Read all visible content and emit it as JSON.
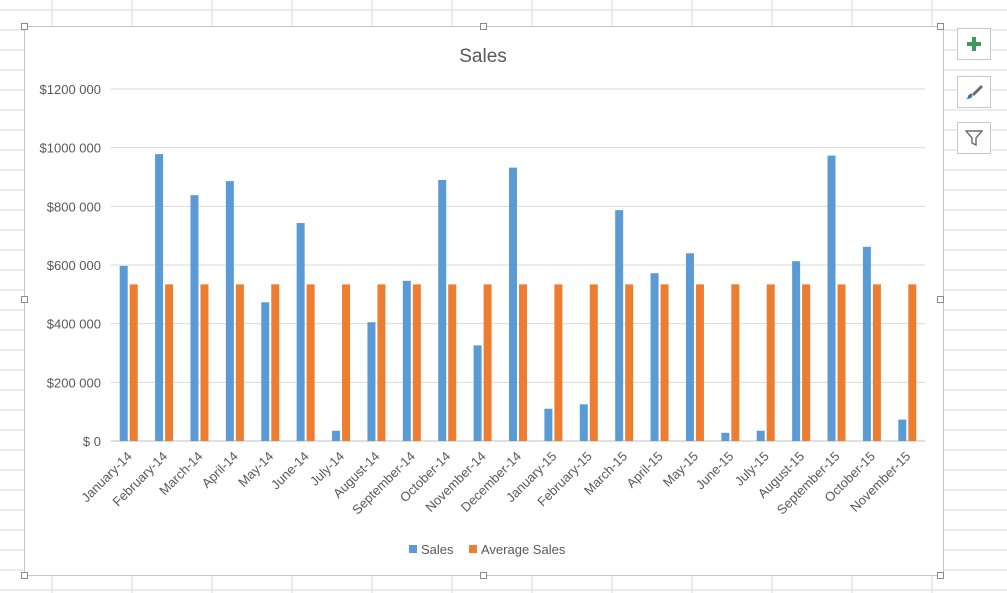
{
  "chart_data": {
    "type": "bar",
    "title": "Sales",
    "xlabel": "",
    "ylabel": "",
    "ylim": [
      0,
      1200000
    ],
    "y_ticks": [
      0,
      200000,
      400000,
      600000,
      800000,
      1000000,
      1200000
    ],
    "y_tick_labels": [
      "$ 0",
      "$200 000",
      "$400 000",
      "$600 000",
      "$800 000",
      "$1000 000",
      "$1200 000"
    ],
    "categories": [
      "January-14",
      "February-14",
      "March-14",
      "April-14",
      "May-14",
      "June-14",
      "July-14",
      "August-14",
      "September-14",
      "October-14",
      "November-14",
      "December-14",
      "January-15",
      "February-15",
      "March-15",
      "April-15",
      "May-15",
      "June-15",
      "July-15",
      "August-15",
      "September-15",
      "October-15",
      "November-15"
    ],
    "series": [
      {
        "name": "Sales",
        "color": "#5B9BD5",
        "values": [
          597000,
          978000,
          838000,
          886000,
          473000,
          743000,
          35000,
          405000,
          546000,
          890000,
          326000,
          932000,
          110000,
          125000,
          787000,
          572000,
          640000,
          28000,
          35000,
          613000,
          973000,
          662000,
          73000
        ]
      },
      {
        "name": "Average Sales",
        "color": "#ED7D31",
        "values": [
          534000,
          534000,
          534000,
          534000,
          534000,
          534000,
          534000,
          534000,
          534000,
          534000,
          534000,
          534000,
          534000,
          534000,
          534000,
          534000,
          534000,
          534000,
          534000,
          534000,
          534000,
          534000,
          534000
        ]
      }
    ],
    "grid": true,
    "legend_position": "bottom"
  },
  "side_buttons": [
    {
      "name": "chart-elements-button",
      "icon": "plus-icon"
    },
    {
      "name": "chart-styles-button",
      "icon": "paintbrush-icon"
    },
    {
      "name": "chart-filters-button",
      "icon": "filter-icon"
    }
  ]
}
